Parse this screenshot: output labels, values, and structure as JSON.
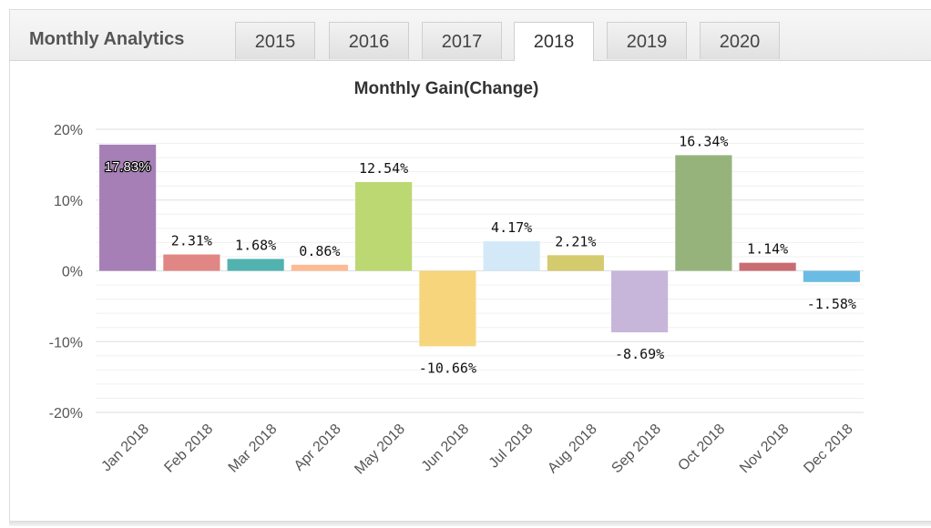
{
  "header": {
    "title": "Monthly Analytics",
    "tabs": [
      {
        "label": "2015",
        "active": false
      },
      {
        "label": "2016",
        "active": false
      },
      {
        "label": "2017",
        "active": false
      },
      {
        "label": "2018",
        "active": true
      },
      {
        "label": "2019",
        "active": false
      },
      {
        "label": "2020",
        "active": false
      }
    ]
  },
  "chart_data": {
    "type": "bar",
    "title": "Monthly Gain(Change)",
    "xlabel": "",
    "ylabel": "",
    "ylim": [
      -20,
      20
    ],
    "yticks": [
      20,
      10,
      0,
      -10,
      -20
    ],
    "ytick_labels": [
      "20%",
      "10%",
      "0%",
      "-10%",
      "-20%"
    ],
    "grid": true,
    "categories": [
      "Jan 2018",
      "Feb 2018",
      "Mar 2018",
      "Apr 2018",
      "May 2018",
      "Jun 2018",
      "Jul 2018",
      "Aug 2018",
      "Sep 2018",
      "Oct 2018",
      "Nov 2018",
      "Dec 2018"
    ],
    "values": [
      17.83,
      2.31,
      1.68,
      0.86,
      12.54,
      -10.66,
      4.17,
      2.21,
      -8.69,
      16.34,
      1.14,
      -1.58
    ],
    "data_labels": [
      "17.83%",
      "2.31%",
      "1.68%",
      "0.86%",
      "12.54%",
      "-10.66%",
      "4.17%",
      "2.21%",
      "-8.69%",
      "16.34%",
      "1.14%",
      "-1.58%"
    ],
    "colors": [
      "#a57fb5",
      "#e08785",
      "#52b2b0",
      "#fdbb93",
      "#bcd872",
      "#f6d57d",
      "#d3e9f8",
      "#d4cb6e",
      "#c7b5da",
      "#96b37c",
      "#c96d73",
      "#6bbce4"
    ]
  }
}
